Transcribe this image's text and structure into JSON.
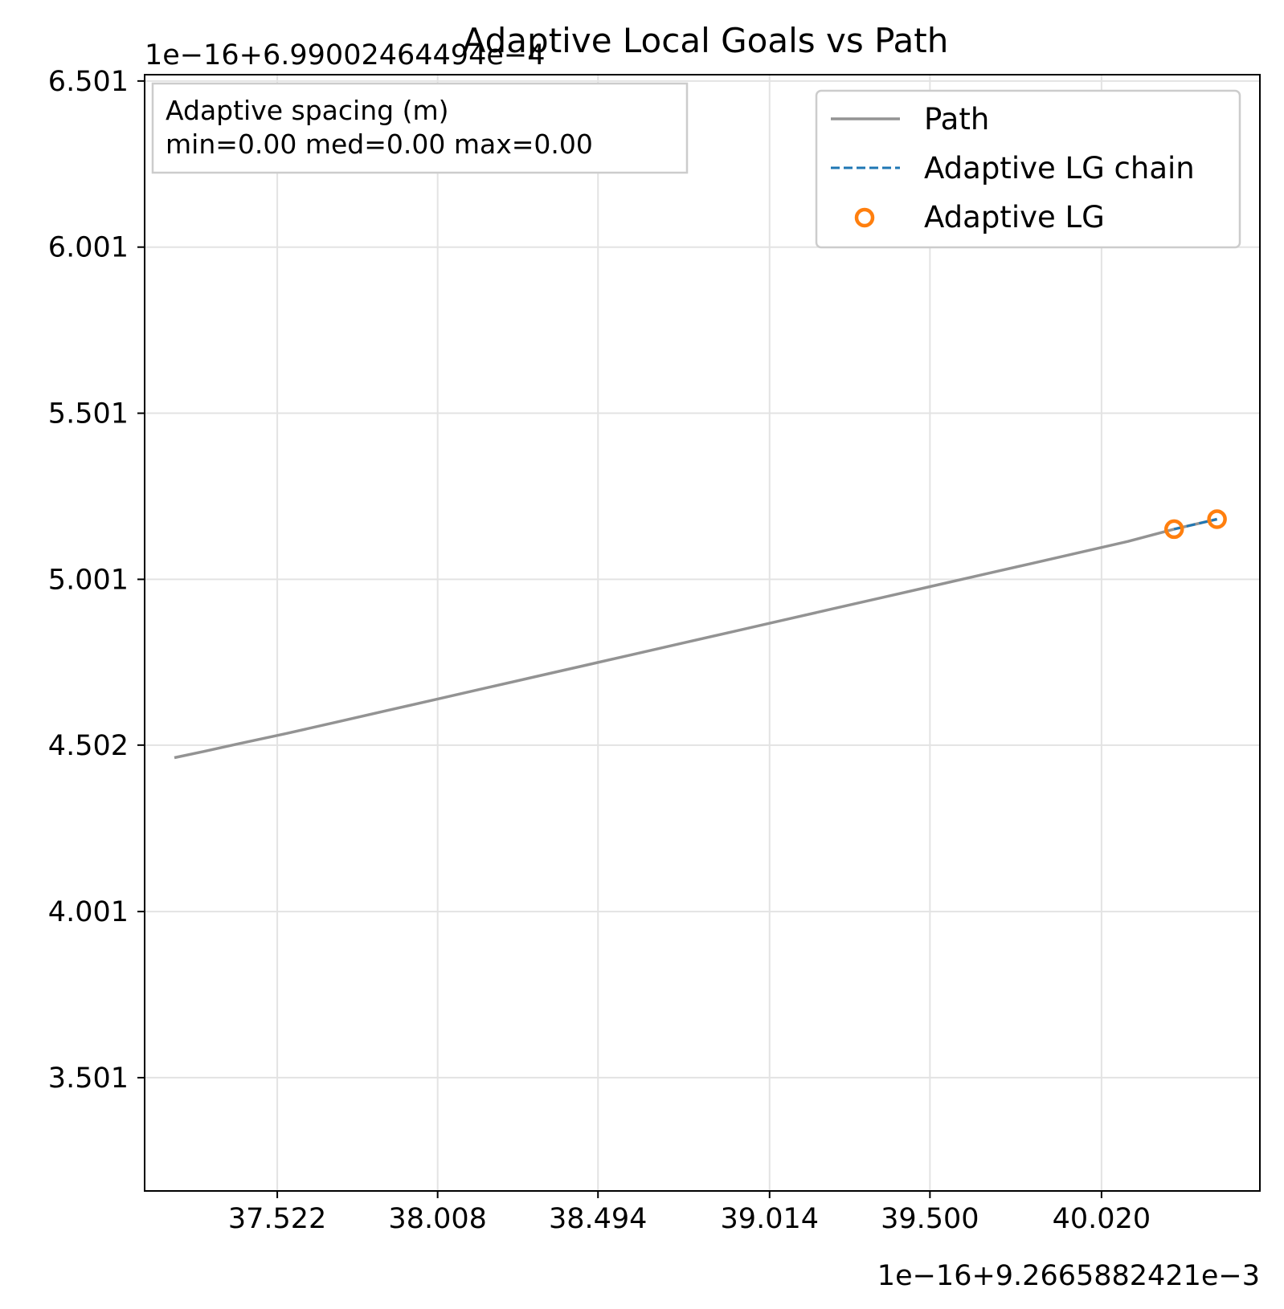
{
  "chart_data": {
    "type": "line",
    "title": "Adaptive Local Goals vs Path",
    "xlabel": "",
    "ylabel": "",
    "x_offset_text": "1e−16+9.2665882421e−3",
    "y_offset_text": "1e−16+6.99002464494e−4",
    "xlim": [
      37.12,
      40.5
    ],
    "ylim": [
      3.16,
      6.52
    ],
    "x_ticks": [
      "37.522",
      "38.008",
      "38.494",
      "39.014",
      "39.500",
      "40.020"
    ],
    "x_tick_values": [
      37.522,
      38.008,
      38.494,
      39.014,
      39.5,
      40.02
    ],
    "y_ticks": [
      "3.501",
      "4.001",
      "4.502",
      "5.001",
      "5.501",
      "6.001",
      "6.501"
    ],
    "y_tick_values": [
      3.501,
      4.001,
      4.502,
      5.001,
      5.501,
      6.001,
      6.501
    ],
    "grid": true,
    "legend_position": "top-right",
    "series": [
      {
        "name": "Path",
        "style": "solid",
        "color": "#939393",
        "x": [
          37.21,
          37.3,
          37.4,
          37.55,
          37.7,
          37.85,
          38.0,
          38.15,
          38.3,
          38.45,
          38.6,
          38.75,
          38.9,
          39.05,
          39.2,
          39.35,
          39.5,
          39.65,
          39.8,
          39.95,
          40.1,
          40.24,
          40.37
        ],
        "y": [
          4.464,
          4.483,
          4.505,
          4.537,
          4.571,
          4.605,
          4.639,
          4.673,
          4.707,
          4.741,
          4.775,
          4.809,
          4.843,
          4.877,
          4.911,
          4.945,
          4.979,
          5.013,
          5.047,
          5.081,
          5.115,
          5.152,
          5.182
        ]
      },
      {
        "name": "Adaptive LG chain",
        "style": "dashed",
        "color": "#1f77b4",
        "x": [
          40.24,
          40.37
        ],
        "y": [
          5.152,
          5.182
        ]
      },
      {
        "name": "Adaptive LG",
        "style": "markers",
        "color": "#ff7f0e",
        "x": [
          40.24,
          40.37
        ],
        "y": [
          5.152,
          5.182
        ]
      }
    ],
    "annotation": {
      "line1": "Adaptive spacing (m)",
      "line2": "min=0.00  med=0.00  max=0.00"
    }
  }
}
